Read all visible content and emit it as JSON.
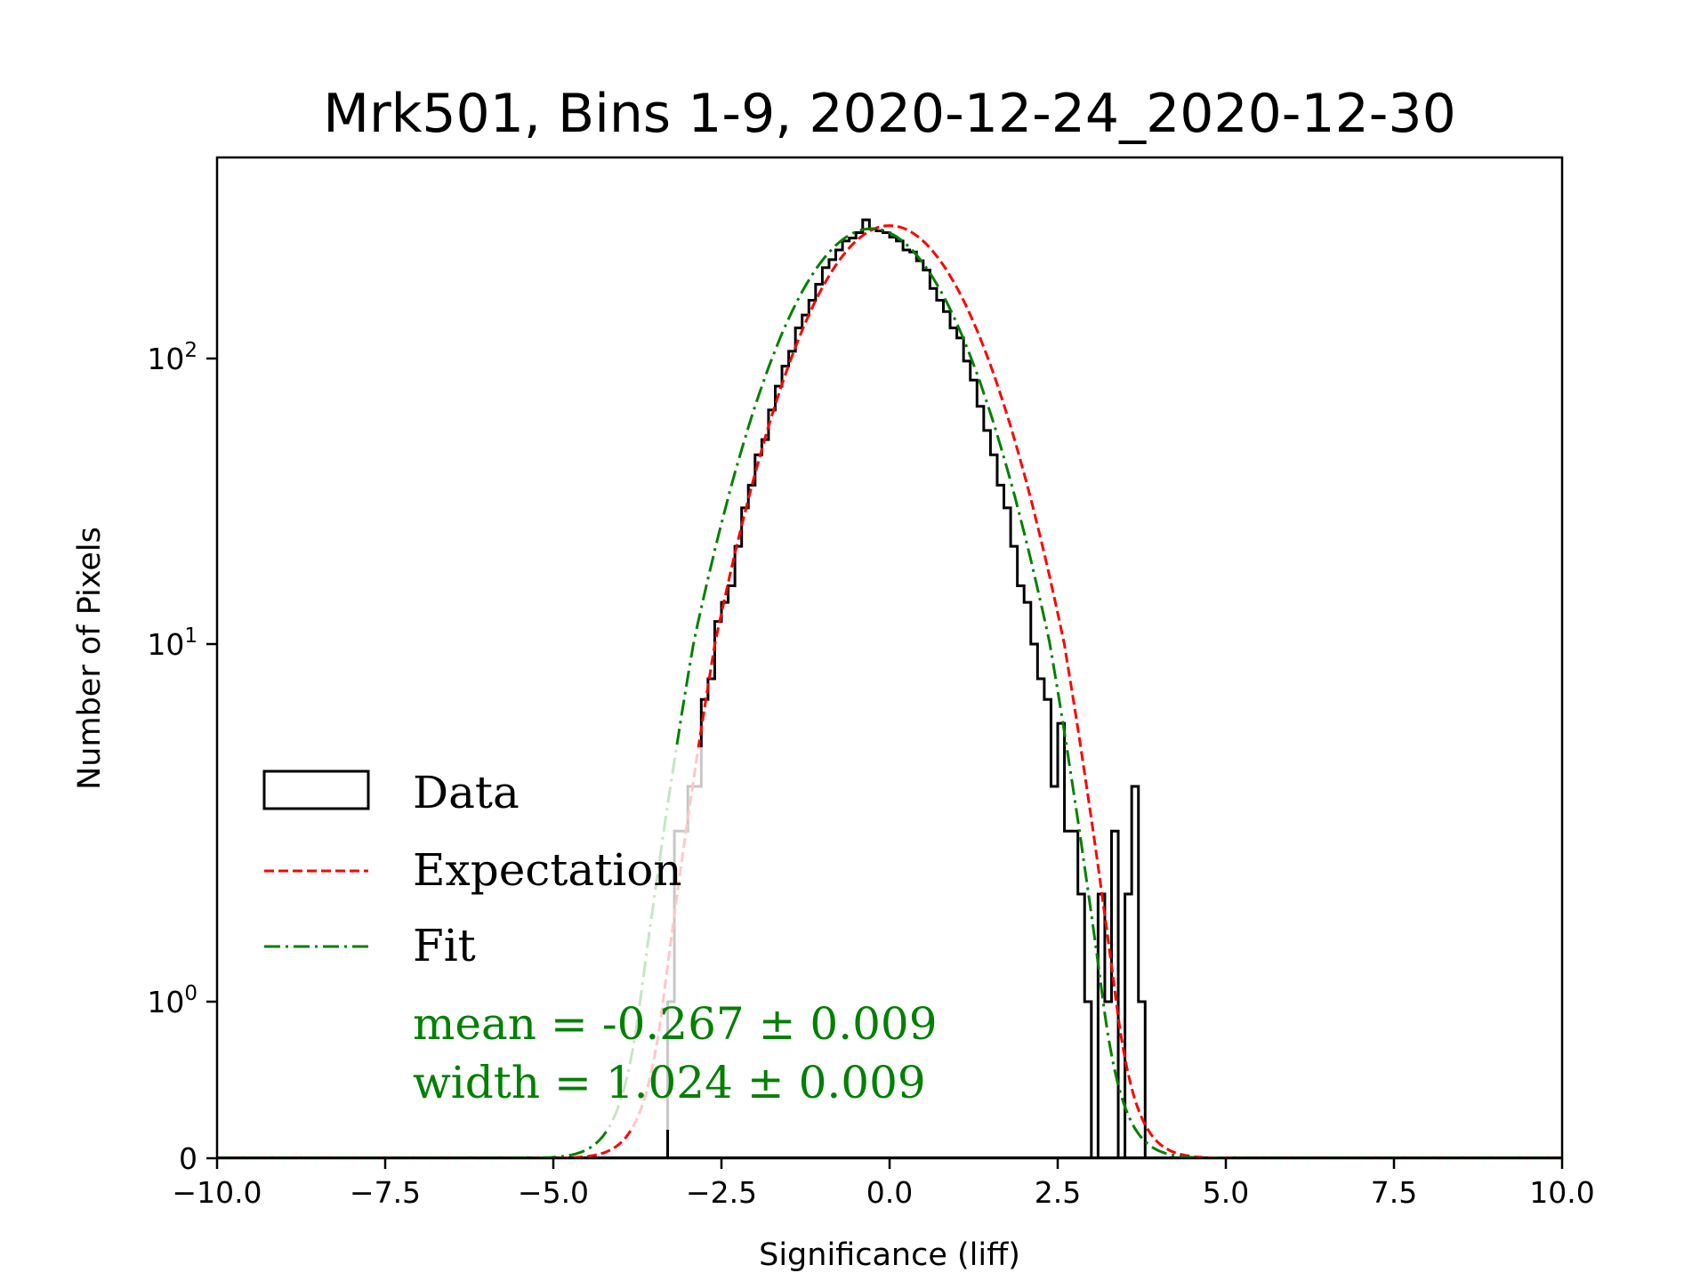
{
  "chart_data": {
    "type": "bar",
    "title": "Mrk501, Bins 1-9, 2020-12-24_2020-12-30",
    "xlabel": "Significance (liff)",
    "ylabel": "Number of Pixels",
    "xlim": [
      -10.0,
      10.0
    ],
    "yscale": "symlog",
    "ylim": [
      0,
      520
    ],
    "x_ticks": [
      -10.0,
      -7.5,
      -5.0,
      -2.5,
      0.0,
      2.5,
      5.0,
      7.5,
      10.0
    ],
    "x_tick_labels": [
      "−10.0",
      "−7.5",
      "−5.0",
      "−2.5",
      "0.0",
      "2.5",
      "5.0",
      "7.5",
      "10.0"
    ],
    "y_ticks": [
      0,
      1,
      10,
      100
    ],
    "y_tick_labels": [
      {
        "base": "0",
        "exp": ""
      },
      {
        "base": "10",
        "exp": "0"
      },
      {
        "base": "10",
        "exp": "1"
      },
      {
        "base": "10",
        "exp": "2"
      }
    ],
    "grid": false,
    "bin_width": 0.1,
    "bin_start": -3.3,
    "histogram_counts": [
      1,
      3,
      3,
      4,
      4,
      7,
      8,
      12,
      14,
      16,
      22,
      30,
      36,
      46,
      52,
      66,
      80,
      94,
      106,
      128,
      142,
      160,
      182,
      208,
      222,
      240,
      258,
      264,
      276,
      306,
      284,
      280,
      276,
      266,
      258,
      240,
      236,
      220,
      204,
      176,
      160,
      146,
      128,
      118,
      98,
      84,
      68,
      56,
      46,
      36,
      30,
      22,
      16,
      14,
      10,
      8,
      7,
      4,
      6,
      3,
      3,
      2,
      1,
      0,
      2,
      1,
      3,
      0,
      2,
      4,
      1,
      0
    ],
    "series": [
      {
        "name": "Data",
        "kind": "step-histogram",
        "color": "#000000"
      },
      {
        "name": "Expectation",
        "kind": "gaussian",
        "color": "#ff0000",
        "linestyle": "dashed",
        "mean": 0.0,
        "width": 1.0,
        "amplitude": 292
      },
      {
        "name": "Fit",
        "kind": "gaussian",
        "color": "#008000",
        "linestyle": "dashdot",
        "mean": -0.267,
        "width": 1.024,
        "amplitude": 285
      }
    ],
    "legend": {
      "placement": "lower-left",
      "entries": [
        "Data",
        "Expectation",
        "Fit"
      ]
    },
    "annotations": [
      "mean = -0.267 ± 0.009",
      "width = 1.024 ± 0.009"
    ],
    "annotation_color": "#008000"
  }
}
